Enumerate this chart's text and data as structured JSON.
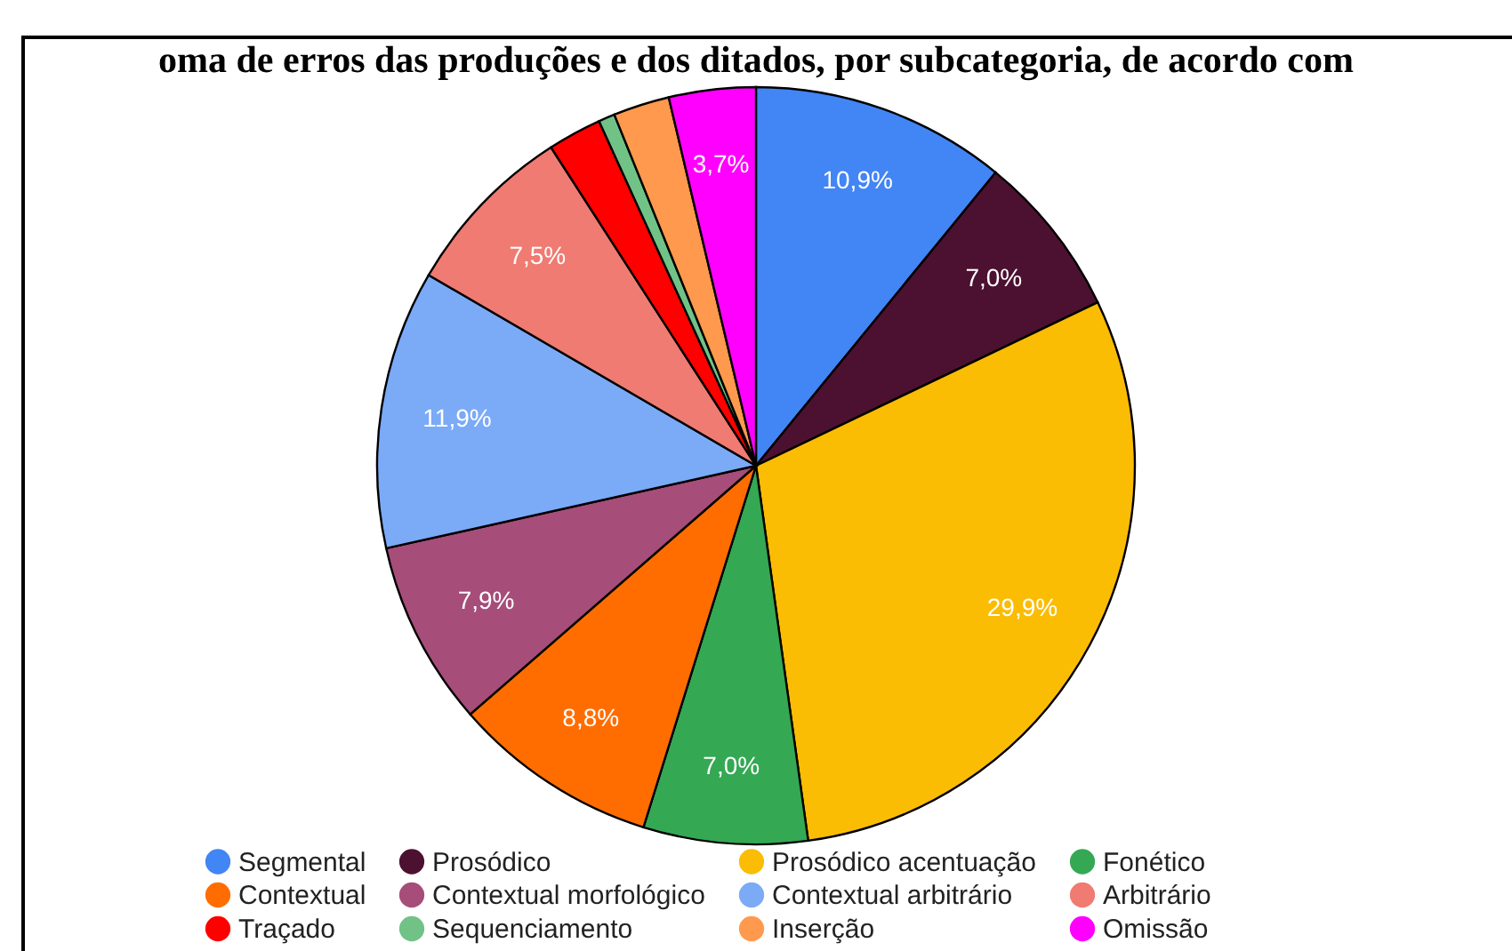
{
  "chart_data": {
    "type": "pie",
    "title": "oma de erros das produções e dos ditados, por subcategoria, de acordo com",
    "categories": [
      "Segmental",
      "Prosódico",
      "Prosódico acentuação",
      "Fonético",
      "Contextual",
      "Contextual morfológico",
      "Contextual arbitrário",
      "Arbitrário",
      "Traçado",
      "Sequenciamento",
      "Inserção",
      "Omissão"
    ],
    "values": [
      10.9,
      7.0,
      29.9,
      7.0,
      8.8,
      7.9,
      11.9,
      7.5,
      2.3,
      0.7,
      2.4,
      3.7
    ],
    "value_labels": [
      "10,9%",
      "7,0%",
      "29,9%",
      "7,0%",
      "8,8%",
      "7,9%",
      "11,9%",
      "7,5%",
      null,
      null,
      null,
      "3,7%"
    ],
    "colors": [
      "#4285f4",
      "#4c1130",
      "#fbbc04",
      "#34a853",
      "#ff6d01",
      "#a64d79",
      "#7baaf7",
      "#f07b72",
      "#ff0000",
      "#71c287",
      "#ff994d",
      "#ff00ff"
    ],
    "legend": "bottom"
  }
}
